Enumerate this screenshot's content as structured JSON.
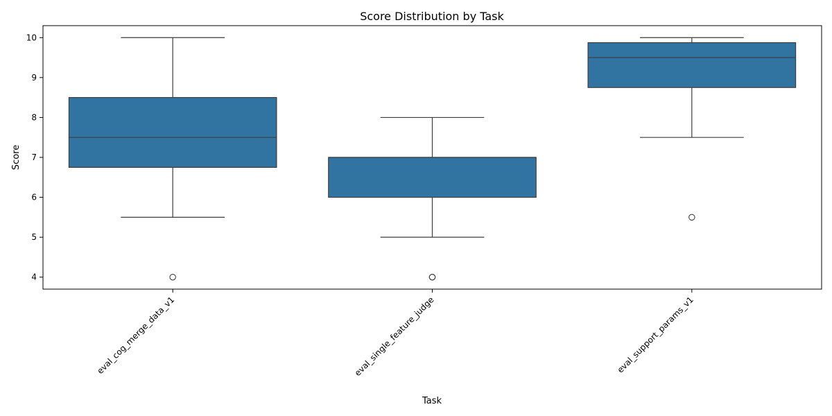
{
  "chart_data": {
    "type": "boxplot",
    "title": "Score Distribution by Task",
    "xlabel": "Task",
    "ylabel": "Score",
    "categories": [
      "eval_cog_merge_data_v1",
      "eval_single_feature_judge",
      "eval_support_params_v1"
    ],
    "boxes": [
      {
        "category": "eval_cog_merge_data_v1",
        "whisker_low": 5.5,
        "q1": 6.75,
        "median": 7.5,
        "q3": 8.5,
        "whisker_high": 10,
        "outliers": [
          4
        ]
      },
      {
        "category": "eval_single_feature_judge",
        "whisker_low": 5,
        "q1": 6,
        "median": 7,
        "q3": 7,
        "whisker_high": 8,
        "outliers": [
          4,
          4
        ]
      },
      {
        "category": "eval_support_params_v1",
        "whisker_low": 7.5,
        "q1": 8.75,
        "median": 9.5,
        "q3": 9.875,
        "whisker_high": 10,
        "outliers": [
          5.5
        ]
      }
    ],
    "ylim": [
      3.7,
      10.3
    ],
    "yticks": [
      4,
      5,
      6,
      7,
      8,
      9,
      10
    ],
    "grid": false,
    "colors": {
      "box": "#3274a1",
      "line": "#3d3d3d",
      "outlier_edge": "#3d3d3d"
    }
  }
}
